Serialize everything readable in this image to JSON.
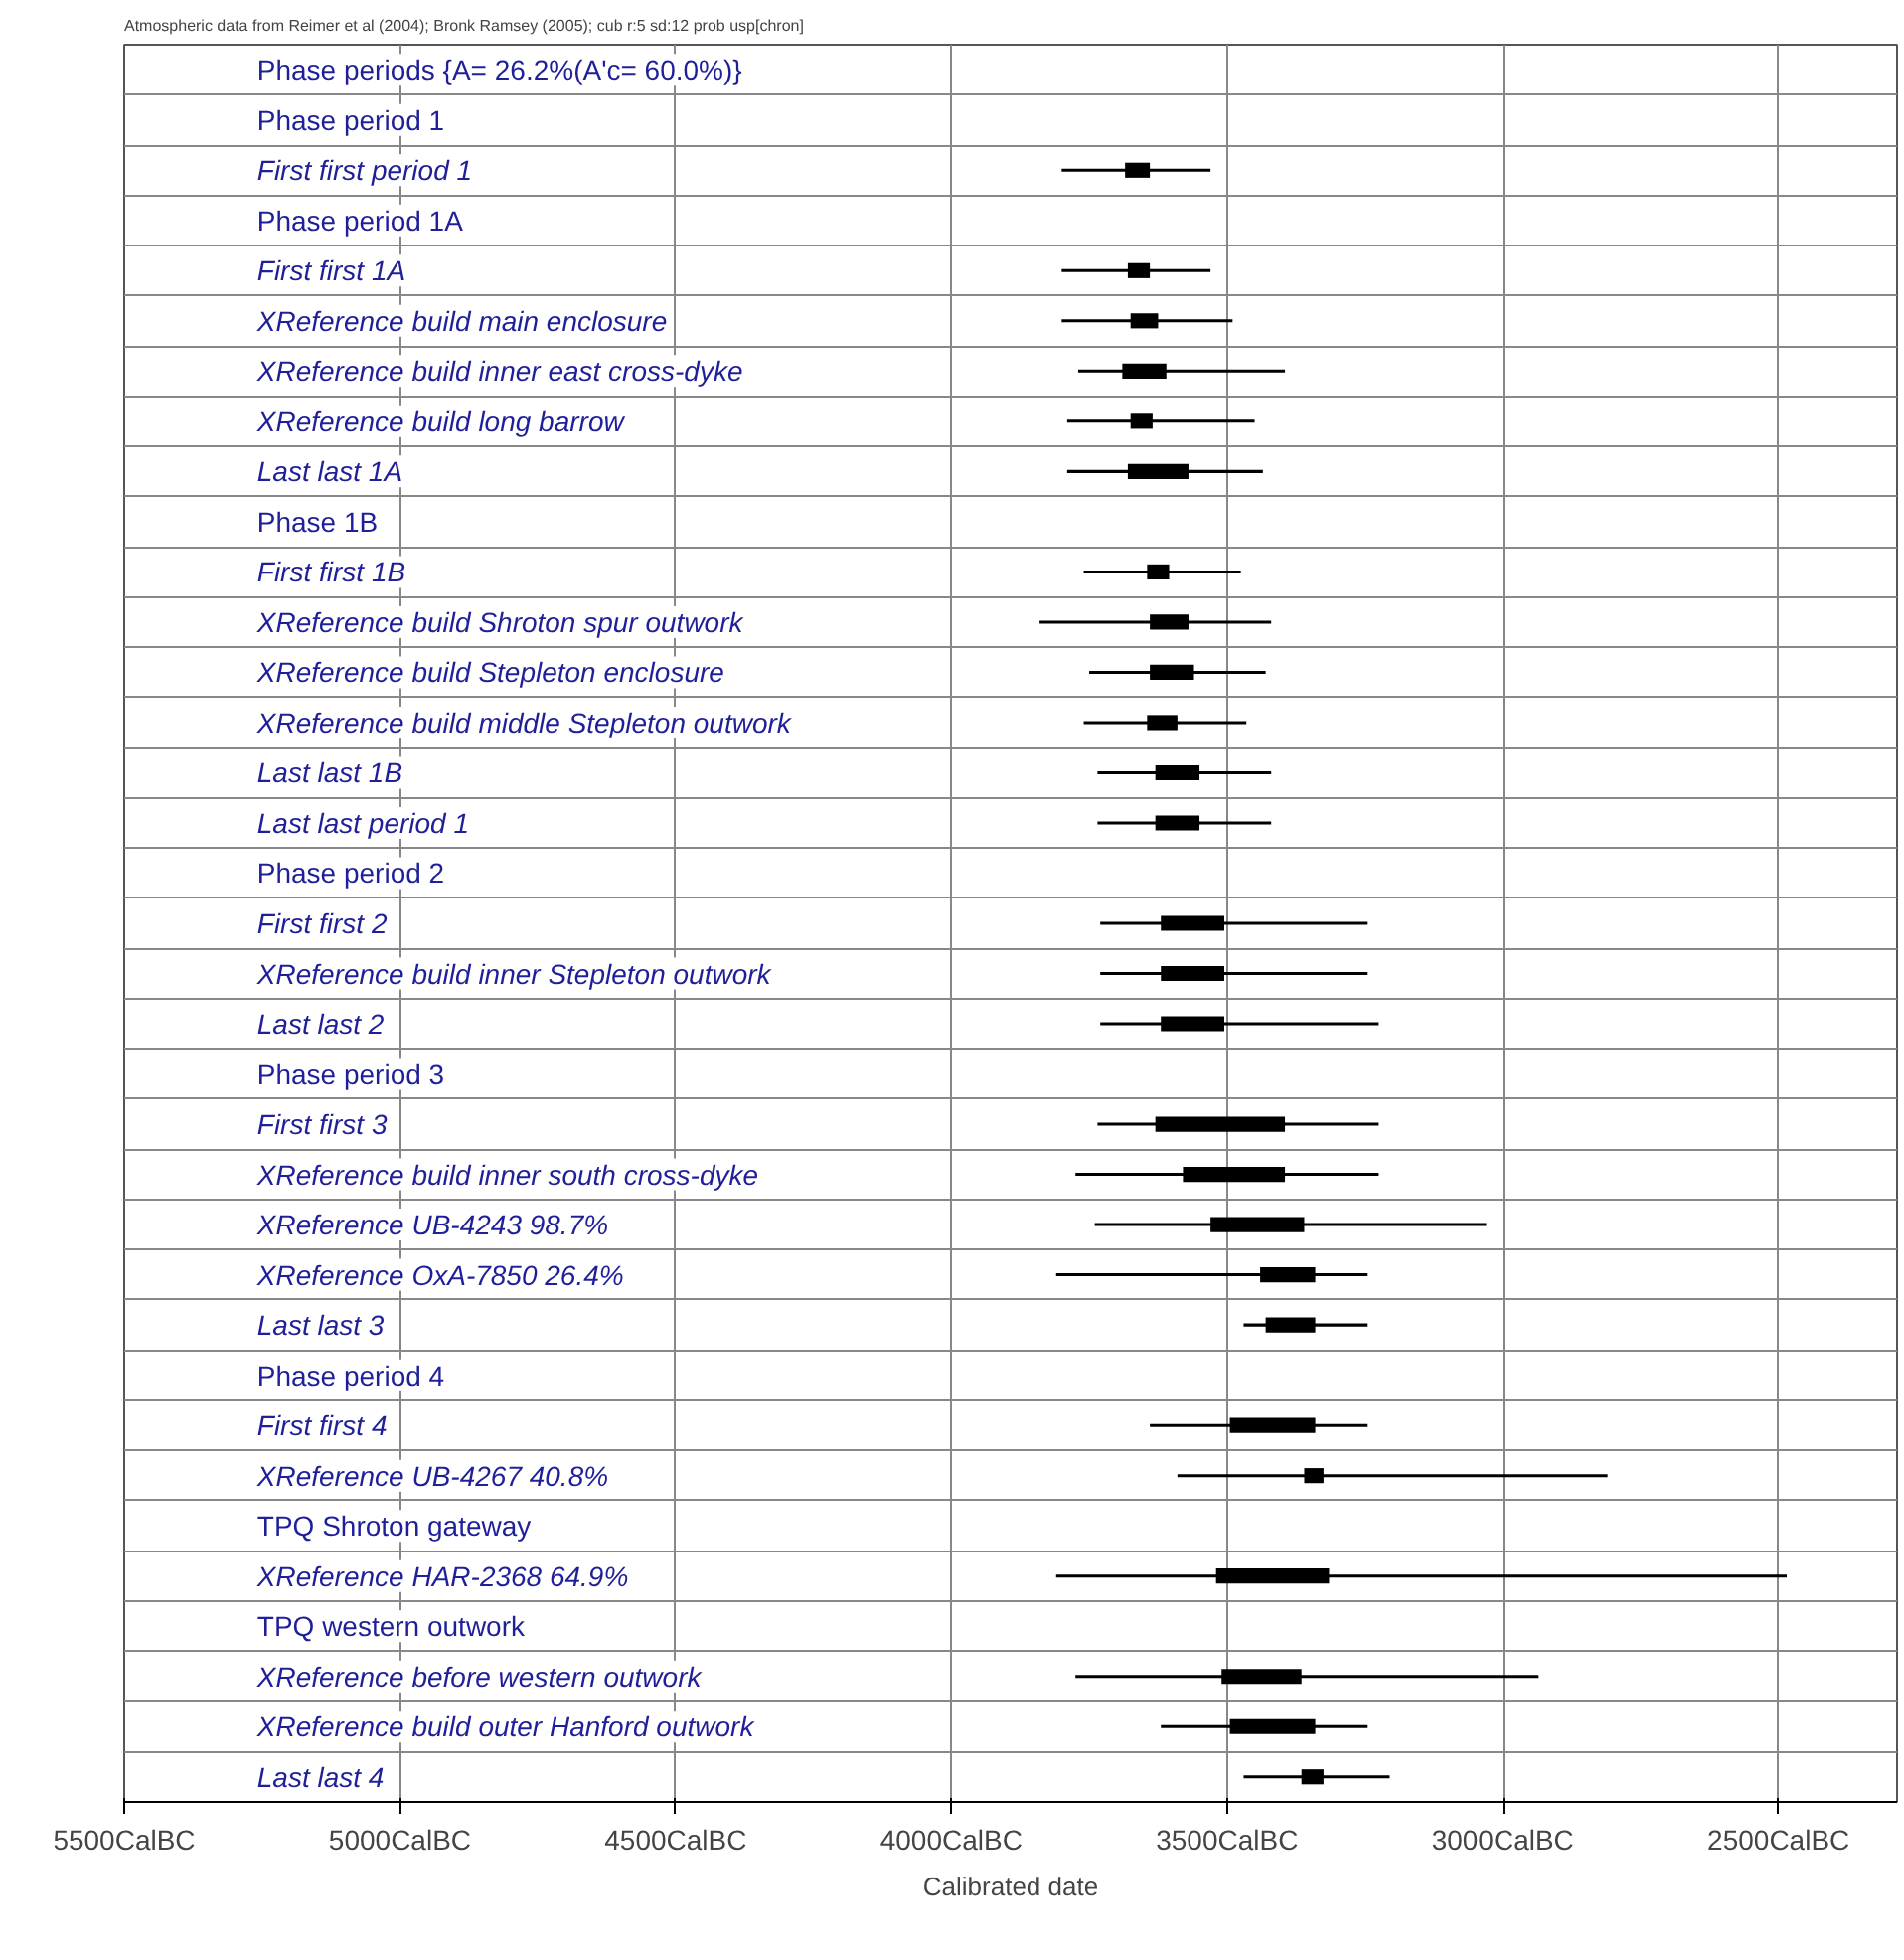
{
  "chart_data": {
    "type": "bar",
    "orientation": "horizontal",
    "title": "Atmospheric data from Reimer et al (2004); Bronk Ramsey (2005); cub r:5 sd:12 prob usp[chron]",
    "xlabel": "Calibrated date",
    "categories": [
      "Phase periods {A= 26.2%(A'c= 60.0%)}",
      "Phase period 1",
      "First first period 1",
      "Phase period 1A",
      "First first 1A",
      "XReference build main enclosure",
      "XReference build inner east cross-dyke",
      "XReference build long barrow",
      "Last last 1A",
      "Phase 1B",
      "First first 1B",
      "XReference build Shroton spur outwork",
      "XReference build Stepleton enclosure",
      "XReference build middle Stepleton outwork",
      "Last last 1B",
      "Last last period 1",
      "Phase period 2",
      "First first 2",
      "XReference build inner Stepleton outwork",
      "Last last 2",
      "Phase period 3",
      "First first 3",
      "XReference build inner south cross-dyke",
      "XReference UB-4243   98.7%",
      "XReference OxA-7850   26.4%",
      "Last last 3",
      "Phase period 4",
      "First first 4",
      "XReference UB-4267   40.8%",
      "TPQ Shroton gateway",
      "XReference HAR-2368   64.9%",
      "TPQ western outwork",
      "XReference before western outwork",
      "XReference build outer Hanford outwork",
      "Last last 4"
    ],
    "series": [
      {
        "color": "#000000",
        "base": [
          null,
          null,
          -3800,
          null,
          -3800,
          -3800,
          -3770,
          -3790,
          -3790,
          null,
          -3760,
          -3840,
          -3750,
          -3760,
          -3735,
          -3735,
          null,
          -3730,
          -3730,
          -3730,
          null,
          -3735,
          -3775,
          -3740,
          -3810,
          -3470,
          null,
          -3640,
          -3590,
          null,
          -3810,
          null,
          -3775,
          -3620,
          -3470
        ],
        "values": [
          null,
          null,
          270,
          null,
          270,
          310,
          375,
          340,
          355,
          null,
          285,
          420,
          320,
          295,
          315,
          315,
          null,
          485,
          485,
          505,
          null,
          510,
          550,
          710,
          565,
          225,
          null,
          395,
          780,
          null,
          1325,
          null,
          840,
          375,
          265
        ]
      },
      {
        "color": "#000000",
        "base": [
          null,
          null,
          -3685,
          null,
          -3680,
          -3675,
          -3690,
          -3675,
          -3680,
          null,
          -3645,
          -3640,
          -3640,
          -3645,
          -3630,
          -3630,
          null,
          -3620,
          -3620,
          -3620,
          null,
          -3630,
          -3580,
          -3530,
          -3440,
          -3430,
          null,
          -3495,
          -3360,
          null,
          -3520,
          null,
          -3510,
          -3495,
          -3365
        ],
        "values": [
          null,
          null,
          45,
          null,
          40,
          50,
          80,
          40,
          110,
          null,
          40,
          70,
          80,
          55,
          80,
          80,
          null,
          115,
          115,
          115,
          null,
          235,
          185,
          170,
          100,
          90,
          null,
          155,
          35,
          null,
          205,
          null,
          145,
          155,
          40
        ]
      }
    ],
    "xlim": [
      -5500,
      -2285
    ],
    "xticks": [
      {
        "value": -5500,
        "label": "5500CalBC"
      },
      {
        "value": -5000,
        "label": "5000CalBC"
      },
      {
        "value": -4500,
        "label": "4500CalBC"
      },
      {
        "value": -4000,
        "label": "4000CalBC"
      },
      {
        "value": -3500,
        "label": "3500CalBC"
      },
      {
        "value": -3000,
        "label": "3000CalBC"
      },
      {
        "value": -2500,
        "label": "2500CalBC"
      }
    ],
    "grid": true
  }
}
